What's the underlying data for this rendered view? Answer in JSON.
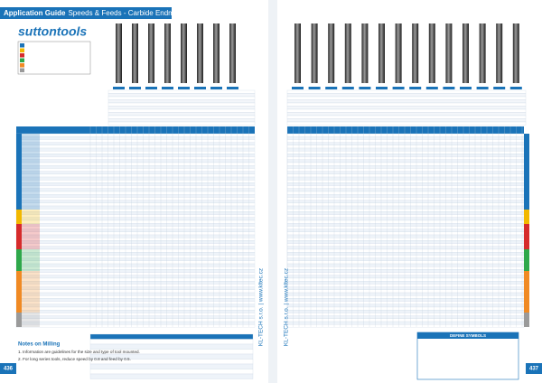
{
  "header": {
    "title_bold": "Application Guide",
    "title_rest": "Speeds & Feeds - Carbide Endmills"
  },
  "logo": "suttontools",
  "notes": {
    "title": "Notes on Milling",
    "items": [
      "1. Information are guidelines for the size and type of tool mounted.",
      "2. For long series tools, reduce speed by 0.8 and feed by 0.5."
    ]
  },
  "symbols_title": "DEFINE SYMBOLS",
  "watermark": "KL-TECH s.r.o. | www.kltec.cz",
  "pages": {
    "left": "436",
    "right": "437"
  }
}
